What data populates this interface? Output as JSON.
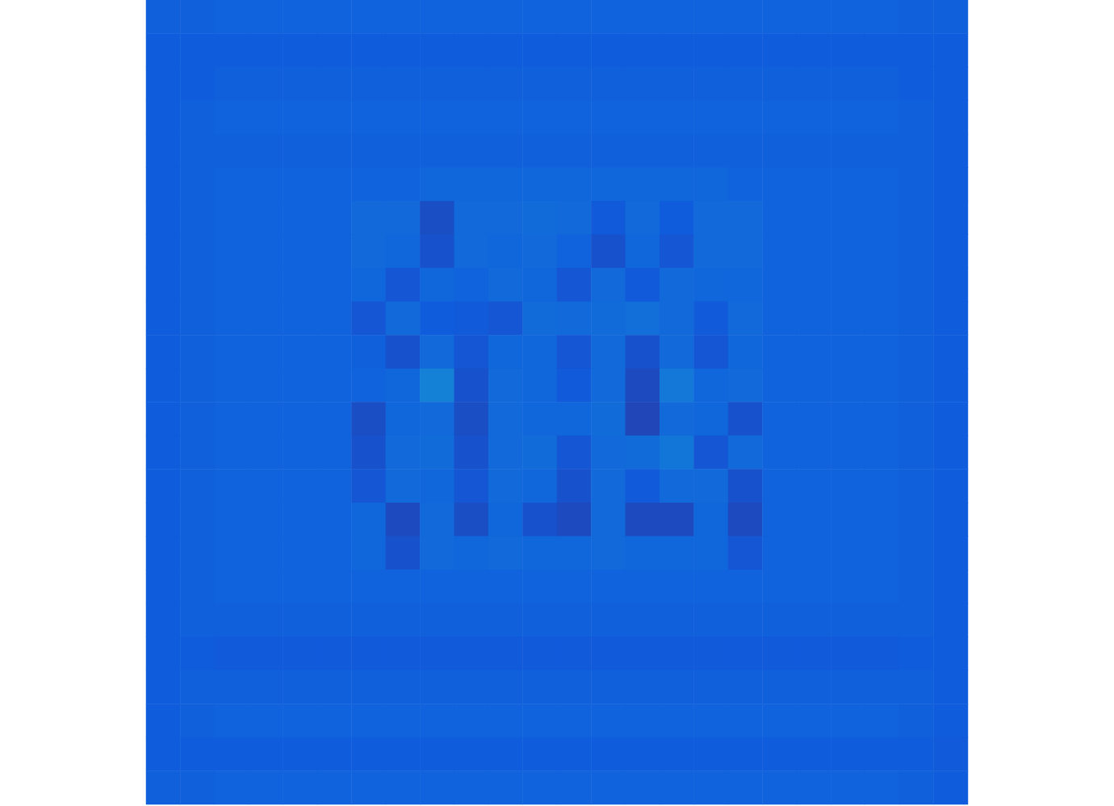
{
  "chart_data": {
    "type": "heatmap",
    "tick_labels": false,
    "zlim": [
      0,
      100
    ],
    "cells": [
      [
        14,
        14,
        15,
        15,
        15,
        15,
        15,
        15,
        15,
        15,
        15,
        15,
        15,
        15,
        15,
        15,
        15,
        15,
        15,
        15,
        15,
        15,
        14,
        14
      ],
      [
        13,
        13,
        13,
        13,
        13,
        13,
        13,
        13,
        13,
        13,
        13,
        13,
        13,
        13,
        13,
        13,
        13,
        13,
        13,
        13,
        13,
        13,
        13,
        13
      ],
      [
        13,
        13,
        14,
        14,
        14,
        14,
        14,
        14,
        14,
        14,
        14,
        14,
        14,
        14,
        14,
        14,
        14,
        14,
        14,
        14,
        14,
        14,
        13,
        13
      ],
      [
        13,
        14,
        15,
        15,
        15,
        15,
        15,
        15,
        15,
        15,
        15,
        15,
        15,
        15,
        15,
        15,
        15,
        15,
        15,
        15,
        15,
        15,
        14,
        13
      ],
      [
        13,
        14,
        14,
        14,
        14,
        14,
        14,
        14,
        14,
        14,
        14,
        14,
        14,
        14,
        14,
        14,
        14,
        14,
        14,
        14,
        14,
        14,
        14,
        13
      ],
      [
        13,
        14,
        15,
        15,
        15,
        15,
        15,
        15,
        16,
        16,
        16,
        16,
        16,
        16,
        16,
        16,
        16,
        15,
        15,
        15,
        15,
        15,
        14,
        13
      ],
      [
        13,
        14,
        15,
        15,
        15,
        15,
        17,
        17,
        9,
        17,
        17,
        18,
        17,
        12,
        17,
        13,
        17,
        17,
        15,
        15,
        15,
        15,
        14,
        13
      ],
      [
        13,
        14,
        15,
        15,
        15,
        15,
        17,
        16,
        10,
        17,
        16,
        17,
        15,
        10,
        16,
        11,
        17,
        17,
        15,
        15,
        15,
        15,
        14,
        13
      ],
      [
        13,
        14,
        15,
        15,
        15,
        15,
        16,
        11,
        16,
        15,
        17,
        16,
        11,
        17,
        12,
        17,
        16,
        16,
        15,
        15,
        15,
        15,
        14,
        13
      ],
      [
        13,
        14,
        15,
        15,
        15,
        15,
        11,
        17,
        13,
        12,
        11,
        18,
        17,
        18,
        19,
        17,
        12,
        17,
        15,
        15,
        15,
        15,
        14,
        13
      ],
      [
        13,
        14,
        15,
        15,
        15,
        15,
        14,
        10,
        17,
        11,
        16,
        16,
        11,
        17,
        10,
        17,
        11,
        16,
        15,
        15,
        15,
        15,
        14,
        13
      ],
      [
        13,
        14,
        15,
        15,
        15,
        15,
        15,
        16,
        25,
        10,
        17,
        16,
        12,
        17,
        8,
        22,
        16,
        17,
        15,
        15,
        15,
        15,
        14,
        13
      ],
      [
        13,
        14,
        15,
        15,
        15,
        15,
        9,
        16,
        17,
        9,
        17,
        16,
        16,
        18,
        7,
        17,
        16,
        10,
        15,
        15,
        15,
        15,
        14,
        13
      ],
      [
        13,
        14,
        15,
        15,
        15,
        15,
        10,
        17,
        18,
        10,
        17,
        18,
        11,
        17,
        18,
        21,
        11,
        17,
        15,
        15,
        15,
        15,
        14,
        13
      ],
      [
        13,
        14,
        15,
        15,
        15,
        15,
        11,
        17,
        16,
        11,
        17,
        16,
        10,
        17,
        12,
        17,
        17,
        10,
        15,
        15,
        15,
        15,
        14,
        13
      ],
      [
        13,
        14,
        15,
        15,
        15,
        15,
        16,
        8,
        17,
        9,
        16,
        10,
        8,
        17,
        8,
        8,
        16,
        8,
        15,
        15,
        15,
        15,
        14,
        13
      ],
      [
        13,
        14,
        15,
        15,
        15,
        15,
        16,
        10,
        17,
        16,
        17,
        16,
        16,
        17,
        16,
        16,
        16,
        11,
        15,
        15,
        15,
        15,
        14,
        13
      ],
      [
        13,
        14,
        15,
        15,
        15,
        15,
        15,
        15,
        15,
        15,
        15,
        15,
        15,
        15,
        15,
        15,
        15,
        15,
        15,
        15,
        15,
        15,
        14,
        13
      ],
      [
        13,
        14,
        14,
        14,
        14,
        14,
        14,
        14,
        14,
        14,
        14,
        14,
        14,
        14,
        14,
        14,
        14,
        14,
        14,
        14,
        14,
        14,
        14,
        13
      ],
      [
        13,
        13,
        12,
        12,
        12,
        12,
        12,
        12,
        12,
        12,
        12,
        12,
        12,
        12,
        12,
        12,
        12,
        12,
        12,
        12,
        12,
        12,
        13,
        13
      ],
      [
        13,
        14,
        14,
        14,
        14,
        14,
        14,
        14,
        14,
        14,
        14,
        14,
        14,
        14,
        14,
        14,
        14,
        14,
        14,
        14,
        14,
        14,
        14,
        13
      ],
      [
        13,
        14,
        15,
        15,
        15,
        15,
        15,
        15,
        15,
        15,
        15,
        15,
        15,
        15,
        15,
        15,
        15,
        15,
        15,
        15,
        15,
        15,
        14,
        13
      ],
      [
        13,
        13,
        13,
        13,
        13,
        13,
        13,
        13,
        13,
        13,
        13,
        13,
        13,
        13,
        13,
        13,
        13,
        13,
        13,
        13,
        13,
        13,
        13,
        12
      ],
      [
        14,
        14,
        15,
        15,
        15,
        15,
        15,
        15,
        15,
        15,
        15,
        15,
        15,
        15,
        15,
        15,
        15,
        15,
        15,
        15,
        15,
        15,
        14,
        13
      ]
    ]
  }
}
